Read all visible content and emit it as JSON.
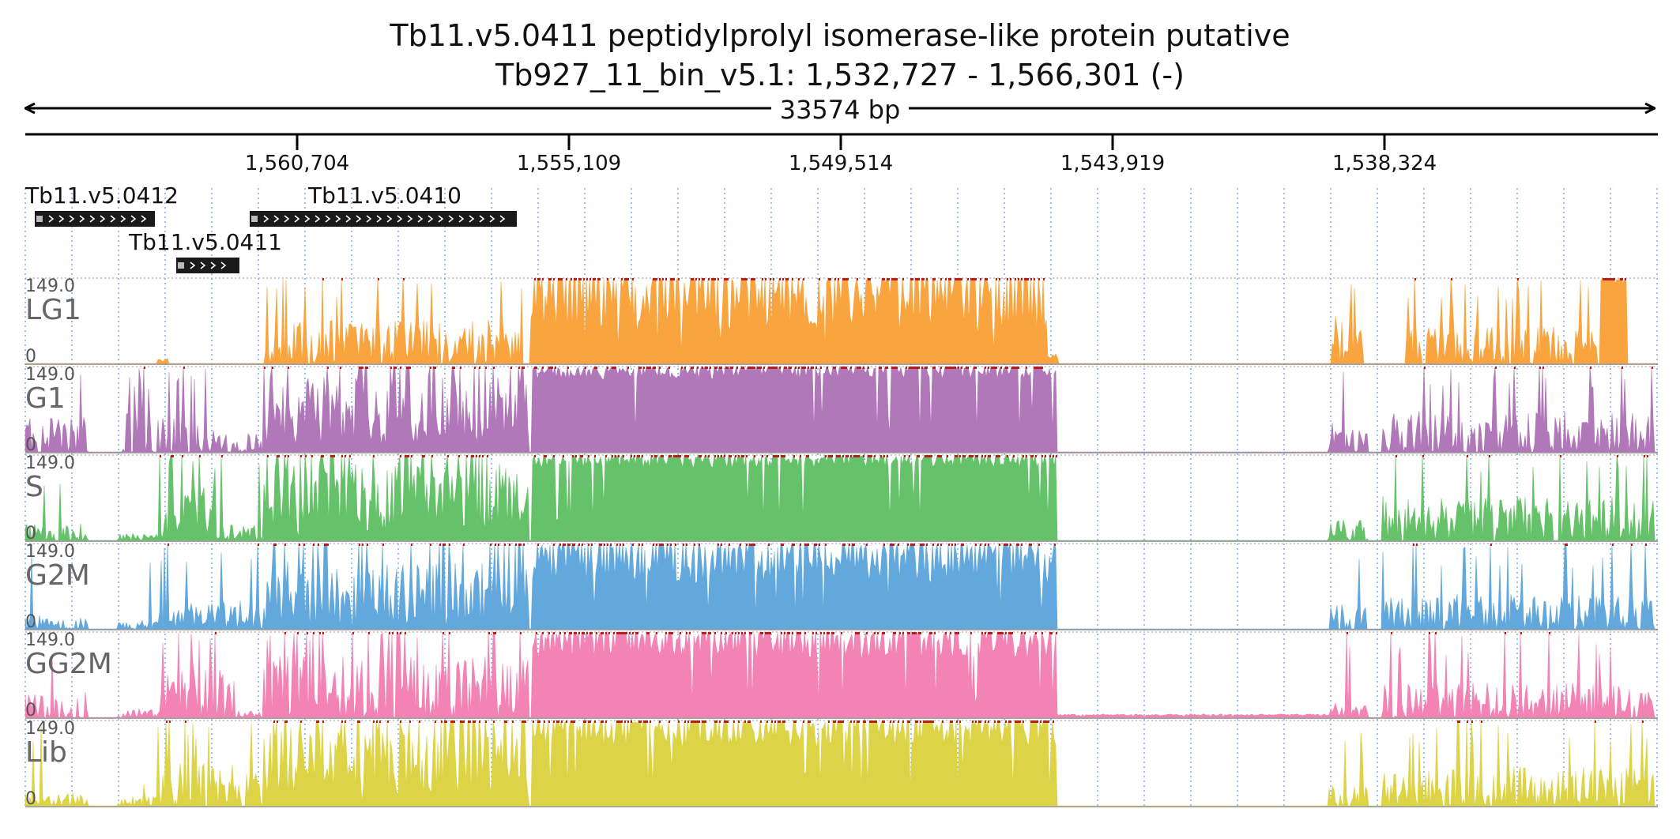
{
  "header": {
    "title": "Tb11.v5.0411  peptidylprolyl isomerase-like protein  putative",
    "locus": "Tb927_11_bin_v5.1: 1,532,727 - 1,566,301 (-)",
    "span_label": "33574 bp"
  },
  "ruler": {
    "ticks": [
      "1,560,704",
      "1,555,109",
      "1,549,514",
      "1,543,919",
      "1,538,324"
    ]
  },
  "genes": [
    {
      "name": "Tb11.v5.0412",
      "strand": "+"
    },
    {
      "name": "Tb11.v5.0411",
      "strand": "+"
    },
    {
      "name": "Tb11.v5.0410",
      "strand": "+"
    }
  ],
  "tracks": [
    {
      "name": "LG1",
      "max": "149.0",
      "min": "0",
      "color": "#f9a43e"
    },
    {
      "name": "G1",
      "max": "149.0",
      "min": "0",
      "color": "#b078b8"
    },
    {
      "name": "S",
      "max": "149.0",
      "min": "0",
      "color": "#66c26a"
    },
    {
      "name": "G2M",
      "max": "149.0",
      "min": "0",
      "color": "#62a8dd"
    },
    {
      "name": "GG2M",
      "max": "149.0",
      "min": "0",
      "color": "#f383b4"
    },
    {
      "name": "Lib",
      "max": "149.0",
      "min": "0",
      "color": "#ddd346"
    }
  ],
  "colors": {
    "gene_feature": "#1a1a1a",
    "saturation_marker": "#b02020",
    "grid_line": "#7fb2e6"
  }
}
